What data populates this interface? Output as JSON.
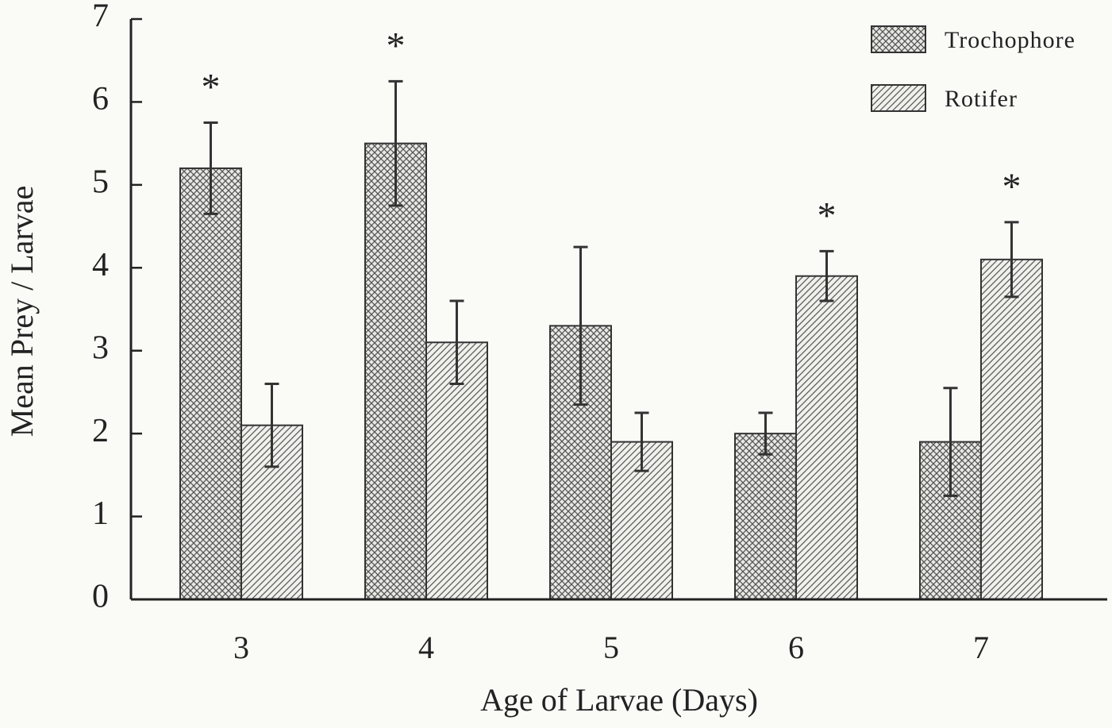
{
  "chart_data": {
    "type": "bar",
    "x_label": "Age of Larvae (Days)",
    "y_label": "Mean Prey / Larvae",
    "categories": [
      "3",
      "4",
      "5",
      "6",
      "7"
    ],
    "series": [
      {
        "name": "Trochophore",
        "color": "#555555",
        "pattern": "crosshatch",
        "values": [
          5.2,
          5.5,
          3.3,
          2.0,
          1.9
        ],
        "errors": [
          0.55,
          0.75,
          0.95,
          0.25,
          0.65
        ],
        "markers": [
          "*",
          "*",
          null,
          null,
          null
        ]
      },
      {
        "name": "Rotifer",
        "color": "#555555",
        "pattern": "diagonal",
        "values": [
          2.1,
          3.1,
          1.9,
          3.9,
          4.1
        ],
        "errors": [
          0.5,
          0.5,
          0.35,
          0.3,
          0.45
        ],
        "markers": [
          null,
          null,
          null,
          "*",
          "*"
        ]
      }
    ],
    "ylim": [
      0,
      7
    ],
    "yticks": [
      0,
      1,
      2,
      3,
      4,
      5,
      6,
      7
    ],
    "legend": "upper right"
  }
}
